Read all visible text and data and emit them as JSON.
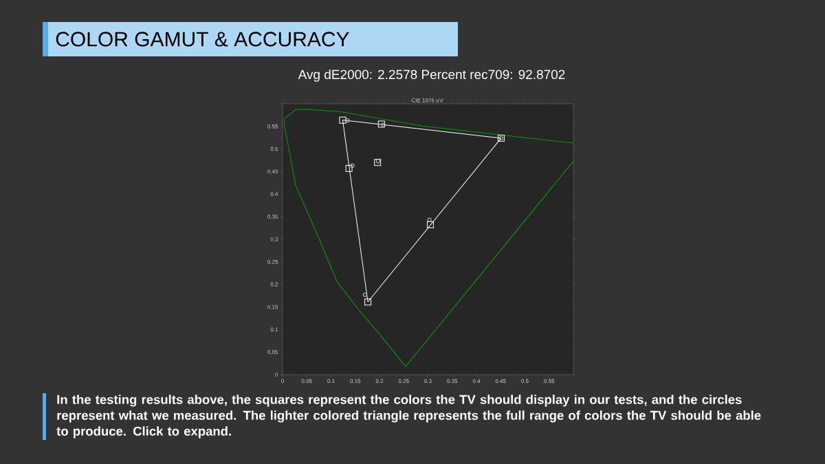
{
  "chart_data": {
    "type": "scatter",
    "title": "COLOR GAMUT & ACCURACY",
    "subtitle": "Avg dE2000: 2.2578    Percent rec709: 92.8702",
    "annotations": [
      "CIE 1976 u'v'",
      "In the testing results above, the squares represent the colors the TV should display in our tests, and the circles represent what we measured. The lighter colored triangle represents the full range of colors the TV should be able to produce. Click to expand."
    ],
    "xlim": [
      0,
      0.6
    ],
    "ylim": [
      0,
      0.6
    ],
    "xticks": [
      0,
      0.05,
      0.1,
      0.15,
      0.2,
      0.25,
      0.3,
      0.35,
      0.4,
      0.45,
      0.5,
      0.55
    ],
    "yticks": [
      0,
      0.05,
      0.1,
      0.15,
      0.2,
      0.25,
      0.3,
      0.35,
      0.4,
      0.45,
      0.5,
      0.55
    ],
    "series": [
      {
        "type": "line",
        "color": "#00a000",
        "line_style": "solid",
        "x": [
          0.003,
          0.004,
          0.013,
          0.027,
          0.077,
          0.112,
          0.16,
          0.202,
          0.254
        ],
        "values": [
          0.567,
          0.55,
          0.5,
          0.419,
          0.297,
          0.206,
          0.14,
          0.087,
          0.018
        ]
      },
      {
        "type": "line",
        "color": "#00a000",
        "line_style": "solid",
        "x": [
          0.003,
          0.027,
          0.051,
          0.122,
          0.288,
          0.6
        ],
        "values": [
          0.567,
          0.587,
          0.588,
          0.582,
          0.551,
          0.513
        ]
      },
      {
        "type": "line",
        "color": "#00a000",
        "line_style": "solid",
        "x": [
          0.254,
          0.6
        ],
        "values": [
          0.018,
          0.473
        ]
      },
      {
        "type": "line",
        "color": "#ffffff",
        "line_style": "solid",
        "x": [
          0.124,
          0.451
        ],
        "values": [
          0.564,
          0.524
        ]
      },
      {
        "type": "line",
        "color": "#ffffff",
        "line_style": "solid",
        "x": [
          0.176,
          0.451
        ],
        "values": [
          0.161,
          0.524
        ]
      },
      {
        "type": "line",
        "color": "#ffffff",
        "line_style": "solid",
        "x": [
          0.124,
          0.176
        ],
        "values": [
          0.564,
          0.161
        ]
      },
      {
        "color": "#ffffff",
        "marker": "square",
        "x": [
          0.124,
          0.204,
          0.451,
          0.137,
          0.196,
          0.305,
          0.176
        ],
        "values": [
          0.564,
          0.555,
          0.524,
          0.457,
          0.47,
          0.332,
          0.161
        ]
      },
      {
        "color": "#c0c0c0",
        "marker": "circle",
        "x": [
          0.134,
          0.208,
          0.451,
          0.144,
          0.197,
          0.303,
          0.17
        ],
        "values": [
          0.563,
          0.553,
          0.524,
          0.463,
          0.473,
          0.343,
          0.177
        ]
      }
    ]
  }
}
